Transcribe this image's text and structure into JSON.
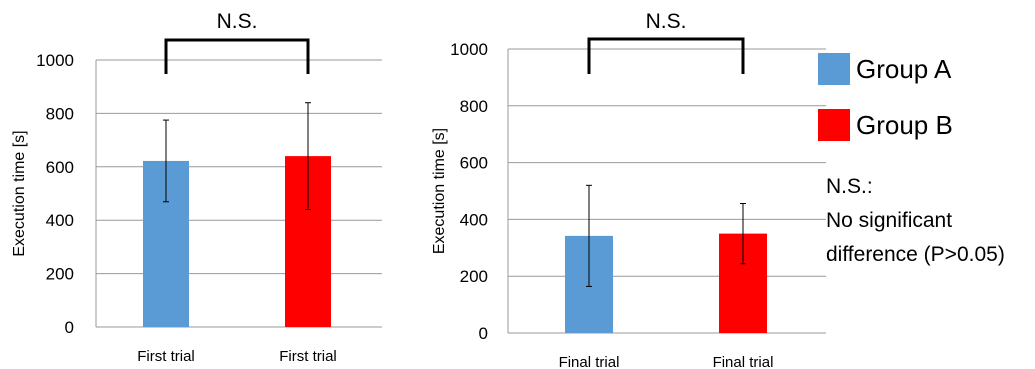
{
  "chart_data": [
    {
      "type": "bar",
      "categories": [
        "First trial",
        "First trial"
      ],
      "series": [
        {
          "values": [
            622,
            640
          ],
          "errors": [
            153,
            200
          ],
          "colors": [
            "#5b9bd5",
            "#ff0000"
          ]
        }
      ],
      "ylabel": "Execution time [s]",
      "ylim": [
        0,
        1000
      ],
      "yticks": [
        "0",
        "200",
        "400",
        "600",
        "800",
        "1000"
      ],
      "grid": true,
      "annotation": "N.S."
    },
    {
      "type": "bar",
      "categories": [
        "Final trial",
        "Final trial"
      ],
      "series": [
        {
          "values": [
            342,
            350
          ],
          "errors": [
            178,
            106
          ],
          "colors": [
            "#5b9bd5",
            "#ff0000"
          ]
        }
      ],
      "ylabel": "Execution time [s]",
      "ylim": [
        0,
        1000
      ],
      "yticks": [
        "0",
        "200",
        "400",
        "600",
        "800",
        "1000"
      ],
      "grid": true,
      "annotation": "N.S."
    }
  ],
  "legend": {
    "items": [
      {
        "label": "Group A",
        "color": "#5b9bd5"
      },
      {
        "label": "Group B",
        "color": "#ff0000"
      }
    ]
  },
  "note": {
    "lines": [
      "N.S.:",
      "No significant",
      "difference (P>0.05)"
    ]
  }
}
